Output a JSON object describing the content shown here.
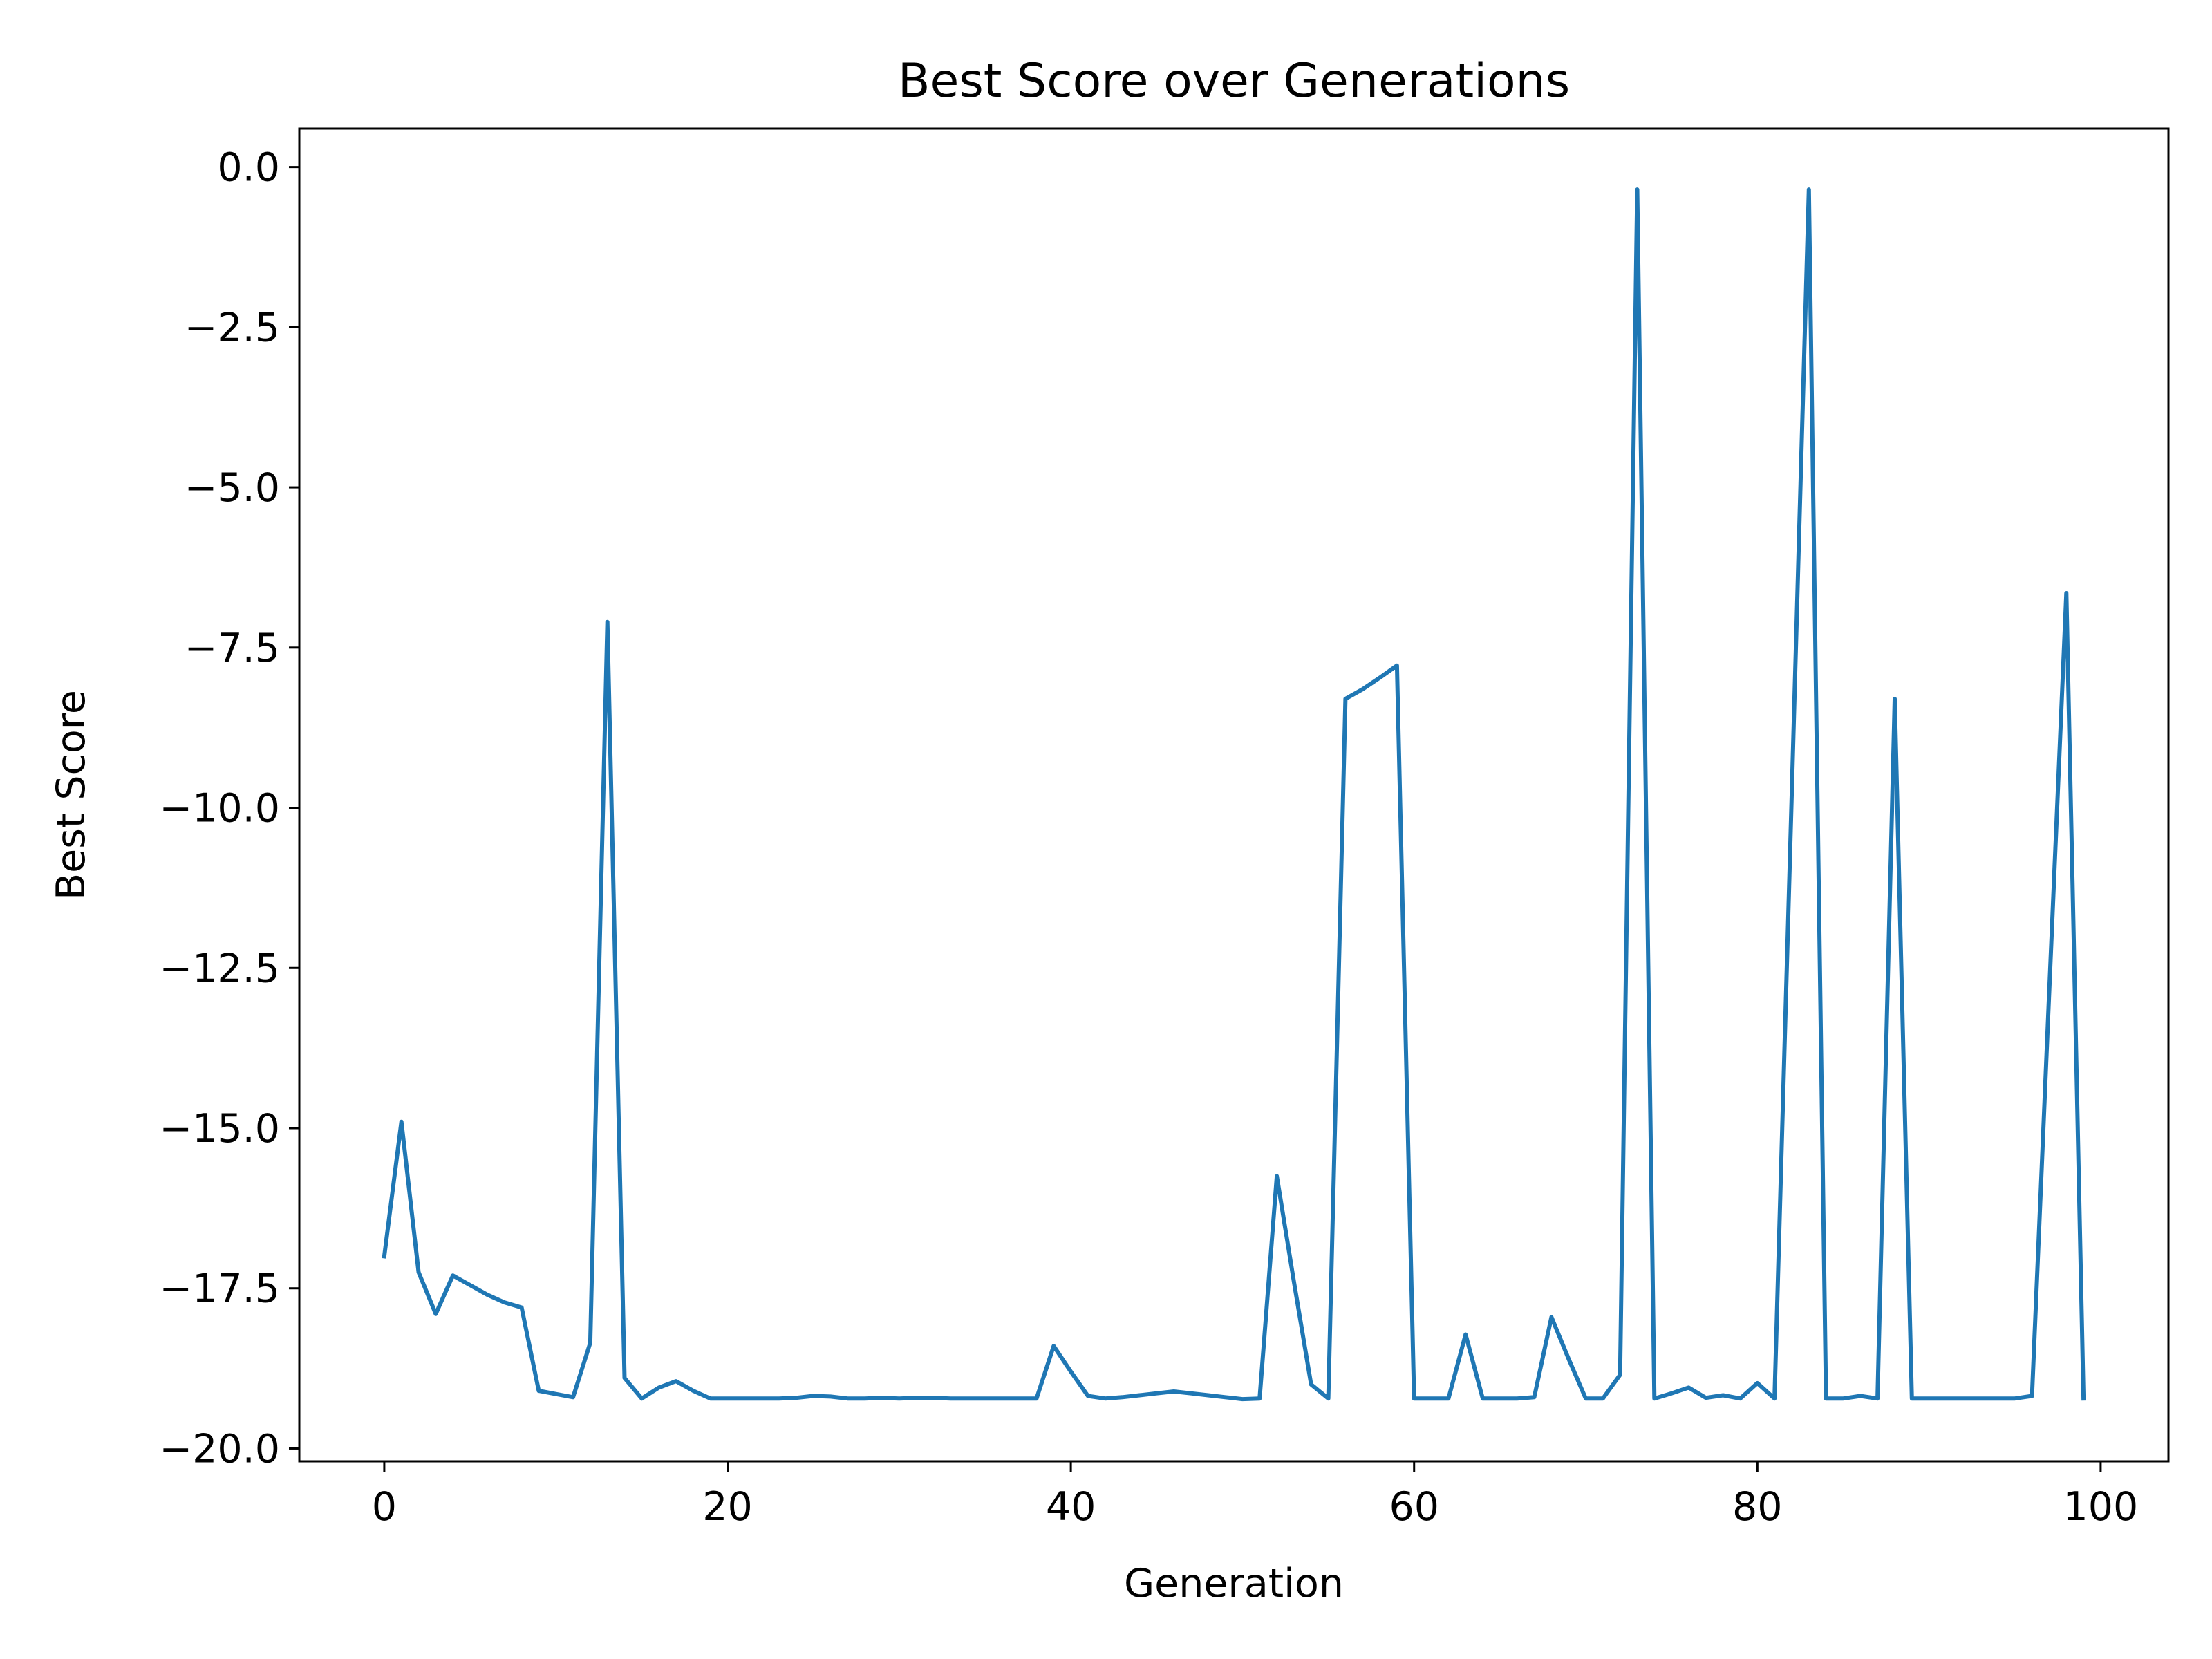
{
  "chart_data": {
    "type": "line",
    "title": "Best Score over Generations",
    "xlabel": "Generation",
    "ylabel": "Best Score",
    "xlim": [
      -4.95,
      103.95
    ],
    "ylim": [
      -20.2,
      0.6
    ],
    "xticks": [
      0,
      20,
      40,
      60,
      80,
      100
    ],
    "xtick_labels": [
      "0",
      "20",
      "40",
      "60",
      "80",
      "100"
    ],
    "yticks": [
      0,
      -2.5,
      -5,
      -7.5,
      -10,
      -12.5,
      -15,
      -17.5,
      -20
    ],
    "ytick_labels": [
      "0.0",
      "−2.5",
      "−5.0",
      "−7.5",
      "−10.0",
      "−12.5",
      "−15.0",
      "−17.5",
      "−20.0"
    ],
    "grid": false,
    "legend": "none",
    "series": [
      {
        "color": "#1f77b4",
        "x": [
          0,
          1,
          2,
          3,
          4,
          5,
          6,
          7,
          8,
          9,
          10,
          11,
          12,
          13,
          14,
          15,
          16,
          17,
          18,
          19,
          20,
          21,
          22,
          23,
          24,
          25,
          26,
          27,
          28,
          29,
          30,
          31,
          32,
          33,
          34,
          35,
          36,
          37,
          38,
          39,
          40,
          41,
          42,
          43,
          44,
          45,
          46,
          47,
          48,
          49,
          50,
          51,
          52,
          53,
          54,
          55,
          56,
          57,
          58,
          59,
          60,
          61,
          62,
          63,
          64,
          65,
          66,
          67,
          68,
          69,
          70,
          71,
          72,
          73,
          74,
          75,
          76,
          77,
          78,
          79,
          80,
          81,
          82,
          83,
          84,
          85,
          86,
          87,
          88,
          89,
          90,
          91,
          92,
          93,
          94,
          95,
          96,
          97,
          98,
          99
        ],
        "y": [
          -17.0,
          -14.9,
          -17.25,
          -17.9,
          -17.3,
          -17.45,
          -17.6,
          -17.72,
          -17.8,
          -19.1,
          -19.15,
          -19.2,
          -18.35,
          -7.1,
          -18.9,
          -19.22,
          -19.05,
          -18.95,
          -19.1,
          -19.22,
          -19.22,
          -19.22,
          -19.22,
          -19.22,
          -19.21,
          -19.18,
          -19.19,
          -19.22,
          -19.22,
          -19.21,
          -19.22,
          -19.21,
          -19.21,
          -19.22,
          -19.22,
          -19.22,
          -19.22,
          -19.22,
          -19.22,
          -18.4,
          -18.8,
          -19.18,
          -19.22,
          -19.2,
          -19.17,
          -19.14,
          -19.11,
          -19.14,
          -19.17,
          -19.2,
          -19.23,
          -19.22,
          -15.75,
          -17.4,
          -19.0,
          -19.22,
          -8.3,
          -8.15,
          -7.97,
          -7.78,
          -19.22,
          -19.22,
          -19.22,
          -18.22,
          -19.22,
          -19.22,
          -19.22,
          -19.2,
          -17.95,
          -18.6,
          -19.22,
          -19.22,
          -18.85,
          -0.35,
          -19.22,
          -19.14,
          -19.05,
          -19.21,
          -19.17,
          -19.22,
          -18.98,
          -19.22,
          -9.8,
          -0.35,
          -19.22,
          -19.22,
          -19.18,
          -19.22,
          -8.3,
          -19.22,
          -19.22,
          -19.22,
          -19.22,
          -19.22,
          -19.22,
          -19.22,
          -19.18,
          -12.9,
          -6.65,
          -19.22
        ]
      }
    ]
  }
}
